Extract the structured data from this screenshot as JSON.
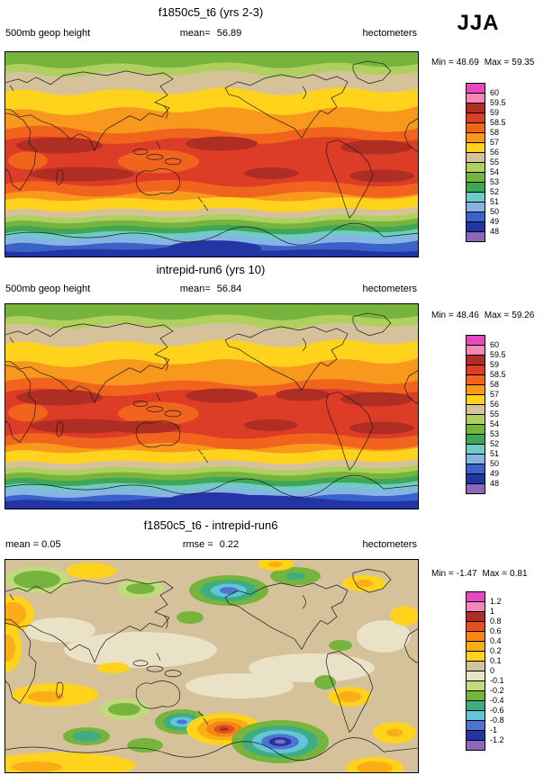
{
  "season": "JJA",
  "panels": [
    {
      "title": "f1850c5_t6 (yrs 2-3)",
      "field_label": "500mb geop height",
      "mean_label": "mean=",
      "mean": "56.89",
      "units": "hectometers",
      "min_label": "Min =",
      "min": "48.69",
      "max_label": "Max =",
      "max": "59.35",
      "legend": {
        "colors": [
          "#E549BF",
          "#F287B8",
          "#AE2E24",
          "#DD3C27",
          "#F0641E",
          "#F8981D",
          "#FFD21C",
          "#D6C29A",
          "#AFD05F",
          "#76B43E",
          "#3FA557",
          "#6FCBC4",
          "#86B4E4",
          "#3B62C9",
          "#2335A5",
          "#8B68BD"
        ],
        "labels": [
          "60",
          "59.5",
          "59",
          "58.5",
          "58",
          "57",
          "56",
          "55",
          "54",
          "53",
          "52",
          "51",
          "50",
          "49",
          "48"
        ]
      }
    },
    {
      "title": "intrepid-run6 (yrs 10)",
      "field_label": "500mb geop height",
      "mean_label": "mean=",
      "mean": "56.84",
      "units": "hectometers",
      "min_label": "Min =",
      "min": "48.46",
      "max_label": "Max =",
      "max": "59.26",
      "legend": {
        "colors": [
          "#E549BF",
          "#F287B8",
          "#AE2E24",
          "#DD3C27",
          "#F0641E",
          "#F8981D",
          "#FFD21C",
          "#D6C29A",
          "#AFD05F",
          "#76B43E",
          "#3FA557",
          "#6FCBC4",
          "#86B4E4",
          "#3B62C9",
          "#2335A5",
          "#8B68BD"
        ],
        "labels": [
          "60",
          "59.5",
          "59",
          "58.5",
          "58",
          "57",
          "56",
          "55",
          "54",
          "53",
          "52",
          "51",
          "50",
          "49",
          "48"
        ]
      }
    },
    {
      "title": "f1850c5_t6 - intrepid-run6",
      "mean_label": "mean =",
      "mean": "0.05",
      "rmse_label": "rmse =",
      "rmse": "0.22",
      "units": "hectometers",
      "min_label": "Min =",
      "min": "-1.47",
      "max_label": "Max =",
      "max": "0.81",
      "legend": {
        "colors": [
          "#E549BF",
          "#F287B8",
          "#AE2E24",
          "#E2511F",
          "#F58613",
          "#FBAD18",
          "#FFD21C",
          "#D6C29A",
          "#EAE2C6",
          "#C2DA7E",
          "#76B43E",
          "#3EAD82",
          "#63C6D8",
          "#4F74D0",
          "#2335A5",
          "#8B68BD"
        ],
        "labels": [
          "1.2",
          "1",
          "0.8",
          "0.6",
          "0.4",
          "0.2",
          "0.1",
          "0",
          "-0.1",
          "-0.2",
          "-0.4",
          "-0.6",
          "-0.8",
          "-1",
          "-1.2"
        ]
      }
    }
  ],
  "chart_data": [
    {
      "type": "heatmap",
      "title": "f1850c5_t6 (yrs 2-3)",
      "variable": "500mb geop height",
      "units": "hectometers",
      "season": "JJA",
      "projection": "global lat-lon, 0-360E",
      "mean": 56.89,
      "min": 48.69,
      "max": 59.35,
      "contour_levels": [
        48,
        49,
        50,
        51,
        52,
        53,
        54,
        55,
        56,
        57,
        58,
        58.5,
        59,
        59.5,
        60
      ],
      "legend_position": "right",
      "pattern": "zonal bands: green/tan Arctic, yellow-orange midlatitudes, red subtropical maxima with dark-red cores, cyan-blue-dark blue toward Antarctica"
    },
    {
      "type": "heatmap",
      "title": "intrepid-run6 (yrs 10)",
      "variable": "500mb geop height",
      "units": "hectometers",
      "season": "JJA",
      "projection": "global lat-lon, 0-360E",
      "mean": 56.84,
      "min": 48.46,
      "max": 59.26,
      "contour_levels": [
        48,
        49,
        50,
        51,
        52,
        53,
        54,
        55,
        56,
        57,
        58,
        58.5,
        59,
        59.5,
        60
      ],
      "legend_position": "right",
      "pattern": "same zonal structure as case 1 with slightly deeper Antarctic low"
    },
    {
      "type": "heatmap",
      "title": "f1850c5_t6 - intrepid-run6",
      "variable": "difference of 500mb geop height",
      "units": "hectometers",
      "season": "JJA",
      "projection": "global lat-lon, 0-360E",
      "mean": 0.05,
      "rmse": 0.22,
      "min": -1.47,
      "max": 0.81,
      "contour_levels": [
        -1.2,
        -1,
        -0.8,
        -0.6,
        -0.4,
        -0.2,
        -0.1,
        0,
        0.1,
        0.2,
        0.4,
        0.6,
        0.8,
        1,
        1.2
      ],
      "legend_position": "right",
      "pattern": "mostly near-zero tan background; scattered positive yellow/orange/red anomalies and negative green/cyan/blue anomalies; strong negative blob with purple core near 60S, positive red core nearby"
    }
  ]
}
